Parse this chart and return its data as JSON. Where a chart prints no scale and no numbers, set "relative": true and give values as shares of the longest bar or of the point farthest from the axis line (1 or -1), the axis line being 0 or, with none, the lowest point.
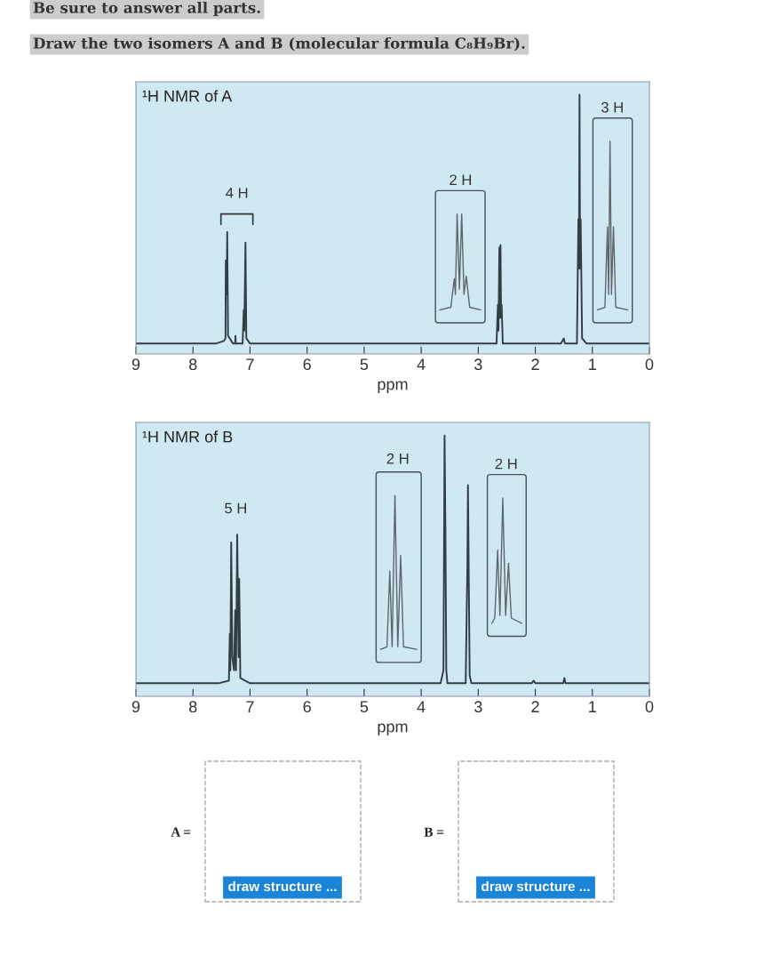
{
  "chart_data": [
    {
      "type": "line",
      "title": "¹H NMR of A",
      "xlabel": "ppm",
      "relative": true,
      "xlim": [
        9,
        0
      ],
      "xticks": [
        9,
        8,
        7,
        6,
        5,
        4,
        3,
        2,
        1,
        0
      ],
      "tick_labels": "x",
      "grid": false,
      "legend": false,
      "marker": "none",
      "line_style": "solid",
      "annotations": [
        "Be sure to answer all parts.",
        "Draw the two isomers A and B (molecular formula C₈H₉Br).",
        "4 H",
        "2 H",
        "3 H"
      ],
      "series": [
        {
          "color": "#333d44",
          "x": [
            9.0,
            7.6,
            7.46,
            7.43,
            7.425,
            7.41,
            7.4,
            7.385,
            7.3,
            7.26,
            7.255,
            7.25,
            7.13,
            7.11,
            7.1,
            7.08,
            7.065,
            7.0,
            2.68,
            2.655,
            2.645,
            2.63,
            2.62,
            2.61,
            2.6,
            2.59,
            2.57,
            1.55,
            1.5,
            1.48,
            1.27,
            1.245,
            1.235,
            1.225,
            1.215,
            1.205,
            1.18,
            1.1,
            0.0
          ],
          "values": [
            0.04,
            0.04,
            0.05,
            0.06,
            0.36,
            0.23,
            0.47,
            0.07,
            0.04,
            0.04,
            0.07,
            0.04,
            0.04,
            0.17,
            0.09,
            0.43,
            0.06,
            0.04,
            0.04,
            0.19,
            0.09,
            0.41,
            0.14,
            0.42,
            0.14,
            0.19,
            0.04,
            0.04,
            0.06,
            0.04,
            0.04,
            0.52,
            0.33,
            1.0,
            0.33,
            0.52,
            0.06,
            0.04,
            0.04
          ]
        },
        {
          "color": "#5f666b",
          "x": [
            3.67,
            3.48,
            3.42,
            3.4,
            3.37,
            3.33,
            3.29,
            3.25,
            3.21,
            3.15,
            2.96
          ],
          "values": [
            0.17,
            0.18,
            0.29,
            0.23,
            0.54,
            0.25,
            0.54,
            0.23,
            0.3,
            0.18,
            0.17
          ]
        },
        {
          "color": "#5f666b",
          "x": [
            0.91,
            0.78,
            0.735,
            0.715,
            0.69,
            0.665,
            0.63,
            0.59,
            0.38
          ],
          "values": [
            0.17,
            0.18,
            0.49,
            0.23,
            0.82,
            0.23,
            0.49,
            0.18,
            0.17
          ]
        }
      ]
    },
    {
      "type": "line",
      "title": "¹H NMR of B",
      "xlabel": "ppm",
      "relative": true,
      "xlim": [
        9,
        0
      ],
      "xticks": [
        9,
        8,
        7,
        6,
        5,
        4,
        3,
        2,
        1,
        0
      ],
      "tick_labels": "x",
      "grid": false,
      "legend": false,
      "marker": "none",
      "line_style": "solid",
      "annotations": [
        "5 H",
        "2 H",
        "2 H",
        "A =",
        "draw structure ...",
        "B =",
        "draw structure ..."
      ],
      "series": [
        {
          "color": "#333d44",
          "x": [
            9.0,
            7.55,
            7.37,
            7.355,
            7.345,
            7.33,
            7.31,
            7.28,
            7.26,
            7.245,
            7.225,
            7.2,
            7.19,
            7.17,
            7.0,
            3.66,
            3.61,
            3.6,
            3.59,
            3.575,
            3.56,
            3.54,
            3.22,
            3.19,
            3.18,
            3.165,
            3.15,
            3.12,
            2.06,
            2.03,
            2.0,
            1.51,
            1.49,
            1.47,
            0.0
          ],
          "values": [
            0.05,
            0.05,
            0.06,
            0.24,
            0.1,
            0.59,
            0.15,
            0.1,
            0.33,
            0.1,
            0.62,
            0.15,
            0.45,
            0.07,
            0.05,
            0.05,
            0.1,
            0.54,
            1.0,
            0.63,
            0.1,
            0.05,
            0.05,
            0.51,
            0.81,
            0.43,
            0.08,
            0.05,
            0.05,
            0.06,
            0.05,
            0.05,
            0.07,
            0.05,
            0.05
          ]
        },
        {
          "color": "#5f666b",
          "x": [
            4.71,
            4.6,
            4.55,
            4.51,
            4.46,
            4.41,
            4.36,
            4.31,
            4.08
          ],
          "values": [
            0.18,
            0.19,
            0.48,
            0.19,
            0.77,
            0.19,
            0.54,
            0.19,
            0.18
          ]
        },
        {
          "color": "#5f666b",
          "x": [
            2.76,
            2.71,
            2.66,
            2.62,
            2.57,
            2.52,
            2.47,
            2.42,
            2.24
          ],
          "values": [
            0.28,
            0.3,
            0.56,
            0.31,
            0.76,
            0.31,
            0.51,
            0.3,
            0.28
          ]
        }
      ]
    }
  ]
}
